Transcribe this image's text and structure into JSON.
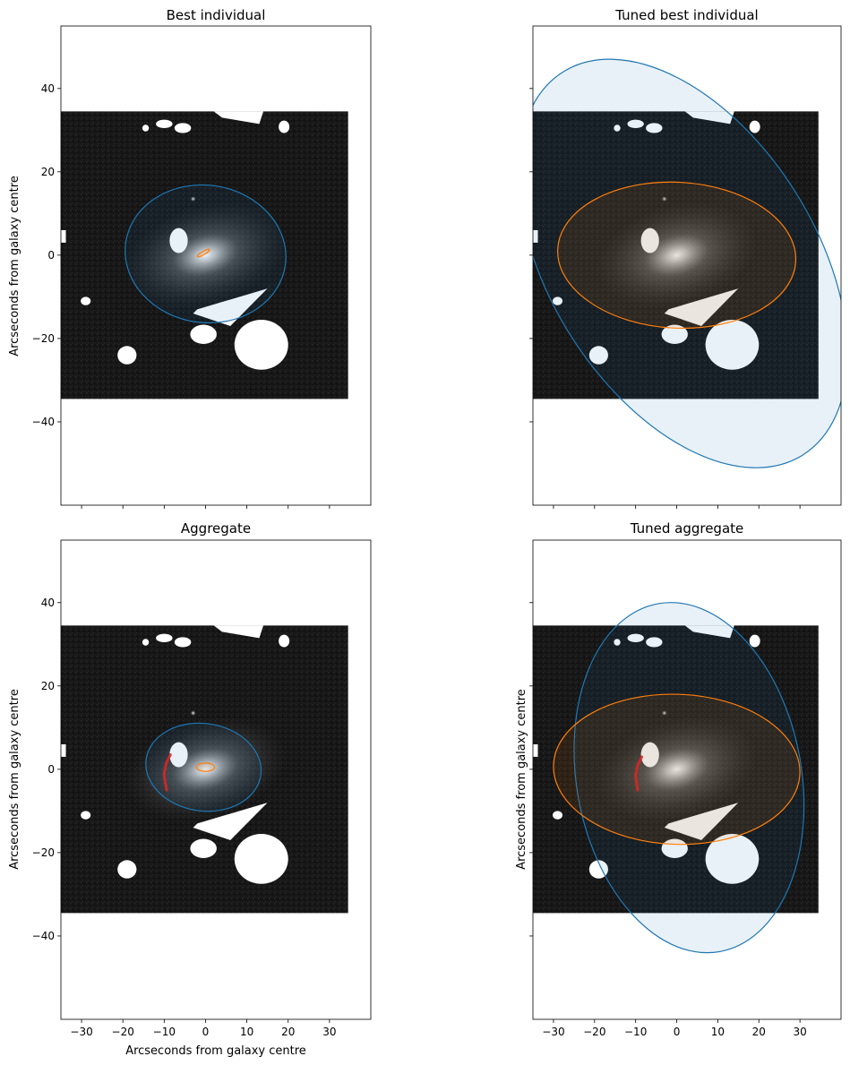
{
  "chart_data": [
    {
      "type": "image",
      "title": "Best individual",
      "xlabel": "",
      "ylabel": "Arcseconds from galaxy centre",
      "xlim": [
        -35,
        40
      ],
      "ylim": [
        -60,
        55
      ],
      "xticks": [
        -30,
        -20,
        -10,
        0,
        10,
        20,
        30
      ],
      "yticks": [
        40,
        20,
        0,
        -20,
        -40
      ],
      "xticklabels": [],
      "yticklabels": [
        "40",
        "20",
        "0",
        "−20",
        "−40"
      ],
      "image_extent": {
        "x": [
          -35,
          34.5
        ],
        "y": [
          -34.5,
          34.5
        ]
      },
      "ellipses": [
        {
          "name": "disk",
          "color": "#1f77b4",
          "cx": 0,
          "cy": 0.3,
          "a": 19.5,
          "b": 16.5,
          "angle_deg": -8
        },
        {
          "name": "bulge",
          "color": "#ff7f0e",
          "cx": -0.5,
          "cy": 0.5,
          "a": 1.7,
          "b": 0.4,
          "angle_deg": 30
        }
      ],
      "arcs": []
    },
    {
      "type": "image",
      "title": "Tuned best individual",
      "xlabel": "",
      "ylabel": "",
      "xlim": [
        -35,
        40
      ],
      "ylim": [
        -60,
        55
      ],
      "xticks": [
        -30,
        -20,
        -10,
        0,
        10,
        20,
        30
      ],
      "yticks": [
        40,
        20,
        0,
        -20,
        -40
      ],
      "xticklabels": [],
      "yticklabels": [],
      "image_extent": {
        "x": [
          -35,
          34.5
        ],
        "y": [
          -34.5,
          34.5
        ]
      },
      "ellipses": [
        {
          "name": "disk",
          "color": "#1f77b4",
          "cx": 1.5,
          "cy": -2,
          "a": 55,
          "b": 32,
          "angle_deg": -58
        },
        {
          "name": "bulge",
          "color": "#ff7f0e",
          "cx": 0,
          "cy": 0,
          "a": 29,
          "b": 17.5,
          "angle_deg": -3
        }
      ],
      "arcs": []
    },
    {
      "type": "image",
      "title": "Aggregate",
      "xlabel": "Arcseconds from galaxy centre",
      "ylabel": "Arcseconds from galaxy centre",
      "xlim": [
        -35,
        40
      ],
      "ylim": [
        -60,
        55
      ],
      "xticks": [
        -30,
        -20,
        -10,
        0,
        10,
        20,
        30
      ],
      "yticks": [
        40,
        20,
        0,
        -20,
        -40
      ],
      "xticklabels": [
        "−30",
        "−20",
        "−10",
        "0",
        "10",
        "20",
        "30"
      ],
      "yticklabels": [
        "40",
        "20",
        "0",
        "−20",
        "−40"
      ],
      "image_extent": {
        "x": [
          -35,
          34.5
        ],
        "y": [
          -34.5,
          34.5
        ]
      },
      "ellipses": [
        {
          "name": "disk",
          "color": "#1f77b4",
          "cx": -0.5,
          "cy": 0.5,
          "a": 14,
          "b": 10.5,
          "angle_deg": -8
        },
        {
          "name": "bulge",
          "color": "#ff7f0e",
          "cx": 0,
          "cy": 0.5,
          "a": 2.2,
          "b": 1,
          "angle_deg": 0
        }
      ],
      "arcs": [
        {
          "name": "spiral-arm",
          "color": "#d62728",
          "points": [
            [
              -8.5,
              3.5
            ],
            [
              -9.5,
              1.5
            ],
            [
              -10,
              -1
            ],
            [
              -9.8,
              -3
            ],
            [
              -9.4,
              -5
            ]
          ]
        }
      ]
    },
    {
      "type": "image",
      "title": "Tuned aggregate",
      "xlabel": "",
      "ylabel": "Arcseconds from galaxy centre",
      "xlim": [
        -35,
        40
      ],
      "ylim": [
        -60,
        55
      ],
      "xticks": [
        -30,
        -20,
        -10,
        0,
        10,
        20,
        30
      ],
      "yticks": [
        40,
        20,
        0,
        -20,
        -40
      ],
      "xticklabels": [
        "−30",
        "−20",
        "−10",
        "0",
        "10",
        "20",
        "30"
      ],
      "yticklabels": [],
      "image_extent": {
        "x": [
          -35,
          34.5
        ],
        "y": [
          -34.5,
          34.5
        ]
      },
      "ellipses": [
        {
          "name": "disk",
          "color": "#1f77b4",
          "cx": 3,
          "cy": -2,
          "a": 43,
          "b": 27,
          "angle_deg": -80
        },
        {
          "name": "bulge",
          "color": "#ff7f0e",
          "cx": 0,
          "cy": 0,
          "a": 30,
          "b": 18,
          "angle_deg": -2
        }
      ],
      "arcs": [
        {
          "name": "spiral-arm",
          "color": "#d62728",
          "points": [
            [
              -8.5,
              3
            ],
            [
              -9.5,
              1
            ],
            [
              -10,
              -1.5
            ],
            [
              -9.5,
              -5
            ]
          ]
        }
      ]
    }
  ]
}
